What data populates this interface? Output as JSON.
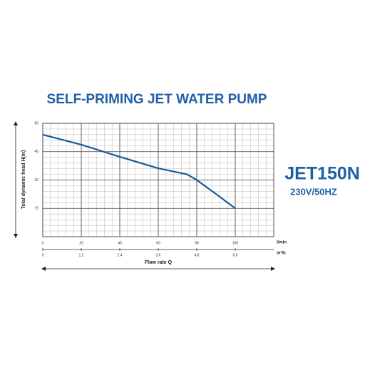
{
  "chart_data": {
    "type": "line",
    "title": "SELF-PRIMING  JET  WATER PUMP",
    "model": "JET150N",
    "rating": "230V/50HZ",
    "ylabel": "Total dynamic head H(m)",
    "xlabel": "Flow rate Q",
    "xunit": "l/min",
    "x2unit": "m³/h",
    "x": [
      0,
      20,
      40,
      60,
      75,
      80,
      90,
      100
    ],
    "series": [
      {
        "color": "#1a5a96",
        "values": [
          54,
          48.7,
          42.3,
          36.2,
          33,
          30,
          22.6,
          15
        ]
      }
    ],
    "xlim": [
      0,
      120
    ],
    "xticks": [
      0,
      20,
      40,
      60,
      80,
      100
    ],
    "x2lim": [
      0,
      7.2
    ],
    "x2ticks": [
      0,
      1.2,
      2.4,
      3.6,
      4.8,
      {
        "value": 6,
        "label": "6.0"
      }
    ],
    "ylim": [
      0,
      60
    ],
    "yticks": [
      15,
      30,
      45,
      60
    ],
    "grid": true
  }
}
